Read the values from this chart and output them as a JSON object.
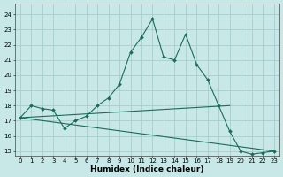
{
  "xlabel": "Humidex (Indice chaleur)",
  "bg_color": "#c8e8e8",
  "line_color": "#1a6b5a",
  "grid_color": "#a8cccc",
  "ylim": [
    14.7,
    24.7
  ],
  "xlim": [
    -0.5,
    23.5
  ],
  "yticks": [
    15,
    16,
    17,
    18,
    19,
    20,
    21,
    22,
    23,
    24
  ],
  "xticks": [
    0,
    1,
    2,
    3,
    4,
    5,
    6,
    7,
    8,
    9,
    10,
    11,
    12,
    13,
    14,
    15,
    16,
    17,
    18,
    19,
    20,
    21,
    22,
    23
  ],
  "curve_x": [
    0,
    1,
    2,
    3,
    4,
    5,
    6,
    7,
    8,
    9,
    10,
    11,
    12,
    13,
    14,
    15,
    16,
    17,
    18,
    19,
    20,
    21,
    22,
    23
  ],
  "curve_y": [
    17.2,
    18.0,
    17.8,
    17.7,
    16.5,
    17.0,
    17.3,
    18.0,
    18.5,
    19.4,
    21.5,
    22.5,
    23.7,
    21.2,
    21.0,
    22.7,
    20.7,
    19.7,
    18.0,
    16.3,
    15.0,
    14.8,
    14.9,
    15.0
  ],
  "flat_line_x": [
    0,
    19
  ],
  "flat_line_y": [
    17.2,
    18.0
  ],
  "diag_line_x": [
    0,
    23
  ],
  "diag_line_y": [
    17.2,
    15.0
  ]
}
